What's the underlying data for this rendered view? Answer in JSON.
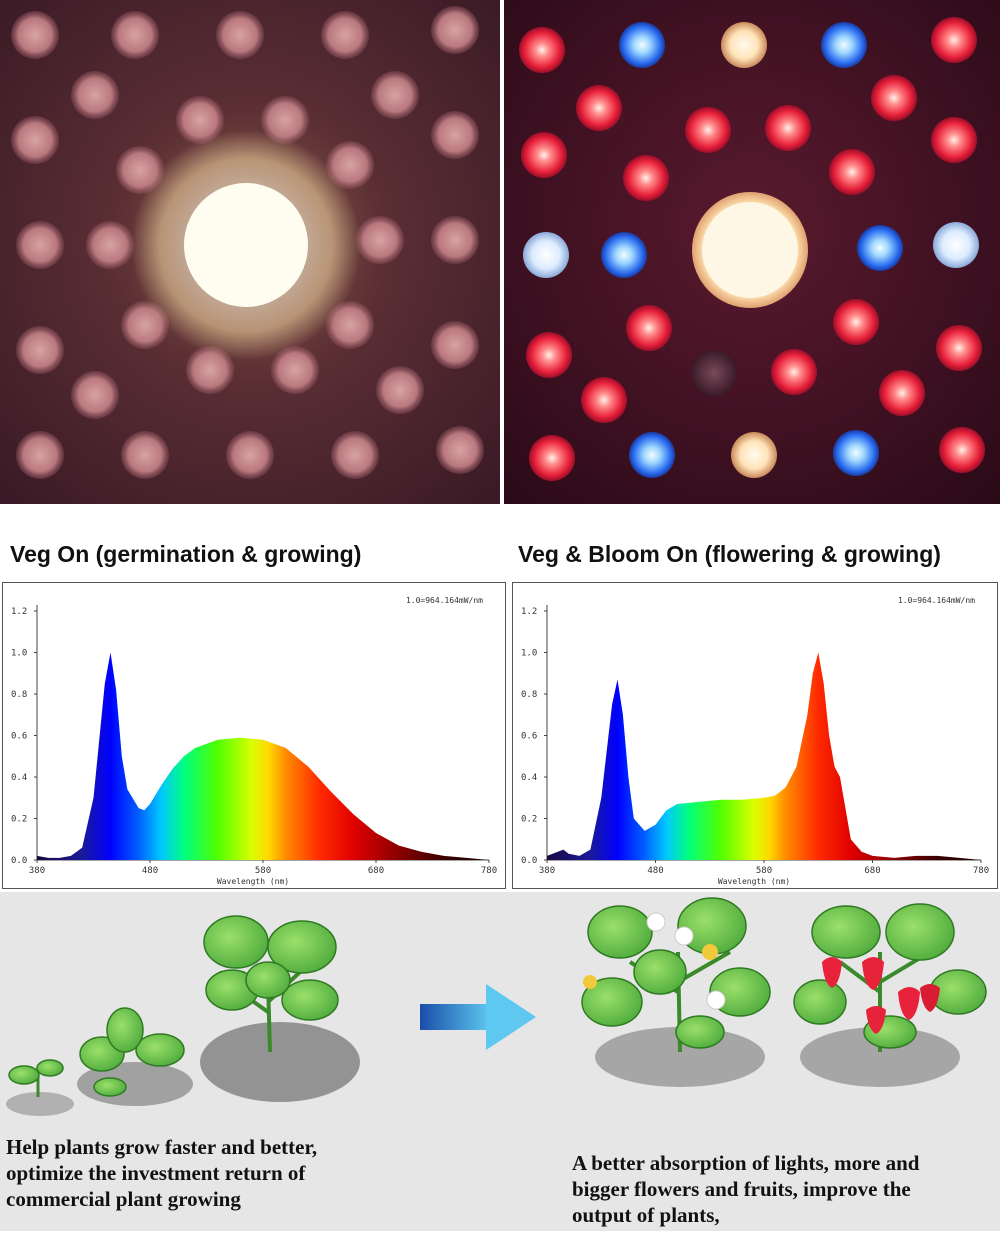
{
  "photos": {
    "left": {
      "mode": "veg",
      "description_icon": "cob-led-warm-white-icon"
    },
    "right": {
      "mode": "veg-bloom",
      "description_icon": "cob-led-full-spectrum-icon"
    }
  },
  "titles": {
    "left": "Veg On (germination & growing)",
    "right": "Veg & Bloom On (flowering & growing)"
  },
  "captions": {
    "left": [
      "Help plants grow faster and better,",
      "optimize the investment return of",
      "commercial plant growing"
    ],
    "right": [
      "A better absorption of lights, more and",
      "bigger flowers and fruits, improve the",
      "output of plants,"
    ]
  },
  "chart_data": [
    {
      "type": "line",
      "title": "Veg On (germination & growing)",
      "annotation": "1.0=964.164mW/nm",
      "xlabel": "Wavelength (nm)",
      "ylabel": "",
      "xlim": [
        380,
        780
      ],
      "ylim": [
        0,
        1.2
      ],
      "xticks": [
        "380",
        "480",
        "580",
        "680",
        "780"
      ],
      "yticks": [
        "0.0",
        "0.2",
        "0.4",
        "0.6",
        "0.8",
        "1.0",
        "1.2"
      ],
      "x": [
        380,
        390,
        400,
        410,
        420,
        430,
        440,
        445,
        450,
        455,
        460,
        470,
        475,
        480,
        490,
        500,
        510,
        520,
        540,
        560,
        580,
        600,
        620,
        640,
        660,
        680,
        700,
        720,
        740,
        760,
        780
      ],
      "y": [
        0.02,
        0.01,
        0.01,
        0.02,
        0.06,
        0.3,
        0.85,
        1.0,
        0.82,
        0.5,
        0.34,
        0.25,
        0.24,
        0.27,
        0.36,
        0.44,
        0.5,
        0.54,
        0.58,
        0.59,
        0.58,
        0.54,
        0.45,
        0.33,
        0.22,
        0.13,
        0.07,
        0.04,
        0.02,
        0.01,
        0.0
      ]
    },
    {
      "type": "line",
      "title": "Veg & Bloom On (flowering & growing)",
      "annotation": "1.0=964.164mW/nm",
      "xlabel": "Wavelength (nm)",
      "ylabel": "",
      "xlim": [
        380,
        780
      ],
      "ylim": [
        0,
        1.2
      ],
      "xticks": [
        "380",
        "480",
        "580",
        "680",
        "780"
      ],
      "yticks": [
        "0.0",
        "0.2",
        "0.4",
        "0.6",
        "0.8",
        "1.0",
        "1.2"
      ],
      "x": [
        380,
        390,
        395,
        400,
        410,
        420,
        430,
        440,
        445,
        450,
        455,
        460,
        470,
        480,
        490,
        500,
        520,
        540,
        560,
        580,
        590,
        600,
        610,
        620,
        625,
        630,
        635,
        640,
        645,
        650,
        655,
        660,
        670,
        680,
        700,
        720,
        740,
        760,
        780
      ],
      "y": [
        0.02,
        0.04,
        0.05,
        0.03,
        0.02,
        0.05,
        0.3,
        0.75,
        0.87,
        0.7,
        0.4,
        0.2,
        0.14,
        0.17,
        0.24,
        0.27,
        0.28,
        0.29,
        0.29,
        0.3,
        0.31,
        0.35,
        0.45,
        0.7,
        0.9,
        1.0,
        0.85,
        0.6,
        0.45,
        0.4,
        0.25,
        0.1,
        0.04,
        0.02,
        0.01,
        0.02,
        0.02,
        0.01,
        0.0
      ]
    }
  ]
}
